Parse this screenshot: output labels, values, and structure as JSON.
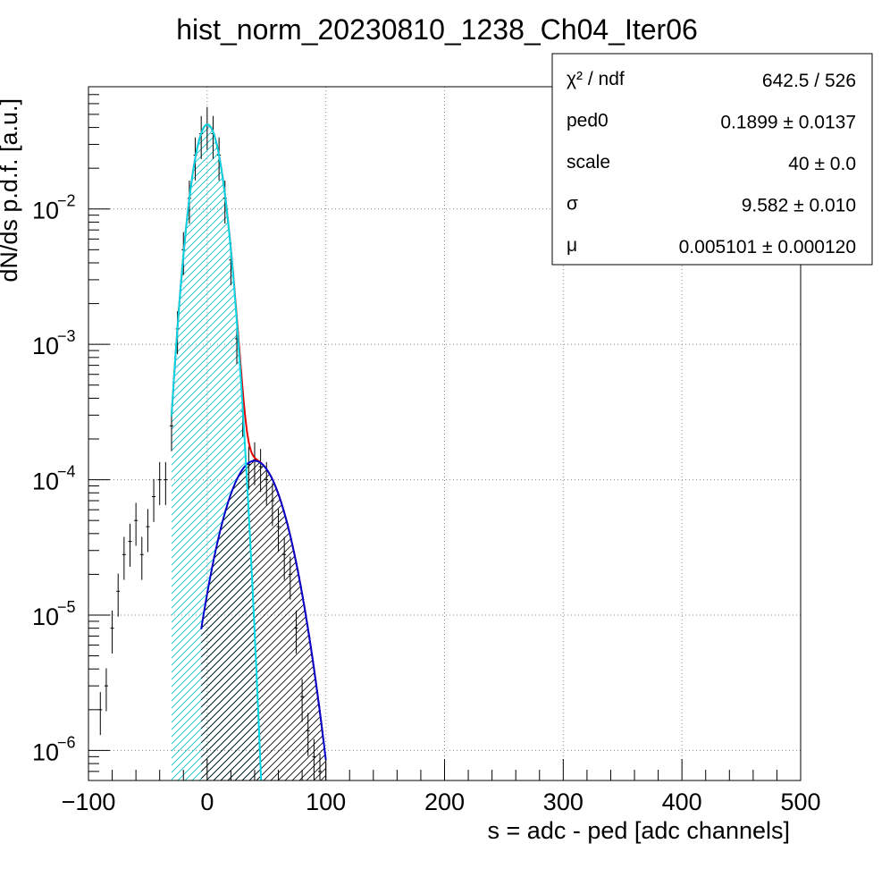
{
  "chart_data": {
    "type": "line",
    "title": "hist_norm_20230810_1238_Ch04_Iter06",
    "xlabel": "s = adc - ped [adc channels]",
    "ylabel": "dN/ds p.d.f. [a.u.]",
    "xlim": [
      -100,
      500
    ],
    "ylim": [
      6e-07,
      0.08
    ],
    "y_scale": "log",
    "grid": true,
    "x_ticks": [
      "−100",
      "0",
      "100",
      "200",
      "300",
      "400",
      "500"
    ],
    "x_tick_values": [
      -100,
      0,
      100,
      200,
      300,
      400,
      500
    ],
    "y_ticks": [
      {
        "value": 1e-06,
        "base": "10",
        "exp": "−6"
      },
      {
        "value": 1e-05,
        "base": "10",
        "exp": "−5"
      },
      {
        "value": 0.0001,
        "base": "10",
        "exp": "−4"
      },
      {
        "value": 0.001,
        "base": "10",
        "exp": "−3"
      },
      {
        "value": 0.01,
        "base": "10",
        "exp": "−2"
      }
    ],
    "stats_box": {
      "position": "top-right",
      "rows": [
        {
          "label": "χ² / ndf",
          "value": "642.5 / 526"
        },
        {
          "label": "ped0",
          "value": "0.1899 ± 0.0137"
        },
        {
          "label": "scale",
          "value": "40 ± 0.0"
        },
        {
          "label": "σ",
          "value": "9.582 ± 0.010"
        },
        {
          "label": "μ",
          "value": "0.005101 ± 0.000120"
        }
      ]
    },
    "series": [
      {
        "role": "pedestal",
        "color": "#00d8e8",
        "fill": "hatched",
        "model": {
          "amplitude": 0.042,
          "mean": 0.19,
          "sigma": 9.582
        },
        "x_range": [
          -30,
          47
        ]
      },
      {
        "role": "single-pe",
        "color": "#0000cc",
        "fill": "hatched",
        "model": {
          "amplitude": 0.000138,
          "mean": 40,
          "sigma": 18.8
        },
        "x_range": [
          -5,
          100
        ]
      },
      {
        "role": "total-fit",
        "color": "#e00000",
        "x_range": [
          -30,
          98
        ]
      },
      {
        "role": "data",
        "color": "#000000",
        "x": [
          -90,
          -85,
          -80,
          -75,
          -70,
          -65,
          -60,
          -55,
          -50,
          -45,
          -40,
          -35,
          -30,
          -25,
          -20,
          -15,
          -10,
          -5,
          0,
          5,
          10,
          15,
          20,
          25,
          30,
          35,
          40,
          45,
          50,
          55,
          60,
          65,
          70,
          75,
          80,
          85,
          90,
          95,
          100
        ],
        "y": [
          2e-06,
          3e-06,
          8e-06,
          1.5e-05,
          2.8e-05,
          3.5e-05,
          5e-05,
          2.8e-05,
          4.5e-05,
          7.5e-05,
          0.0001,
          0.0001,
          0.00025,
          0.0013,
          0.005,
          0.012,
          0.025,
          0.036,
          0.042,
          0.036,
          0.025,
          0.012,
          0.0042,
          0.0011,
          0.00032,
          0.00013,
          0.00014,
          0.000125,
          0.0001,
          7e-05,
          4.5e-05,
          2.8e-05,
          2e-05,
          8e-06,
          2.5e-06,
          1.4e-06,
          9e-07,
          7e-07,
          6e-07
        ]
      }
    ]
  }
}
